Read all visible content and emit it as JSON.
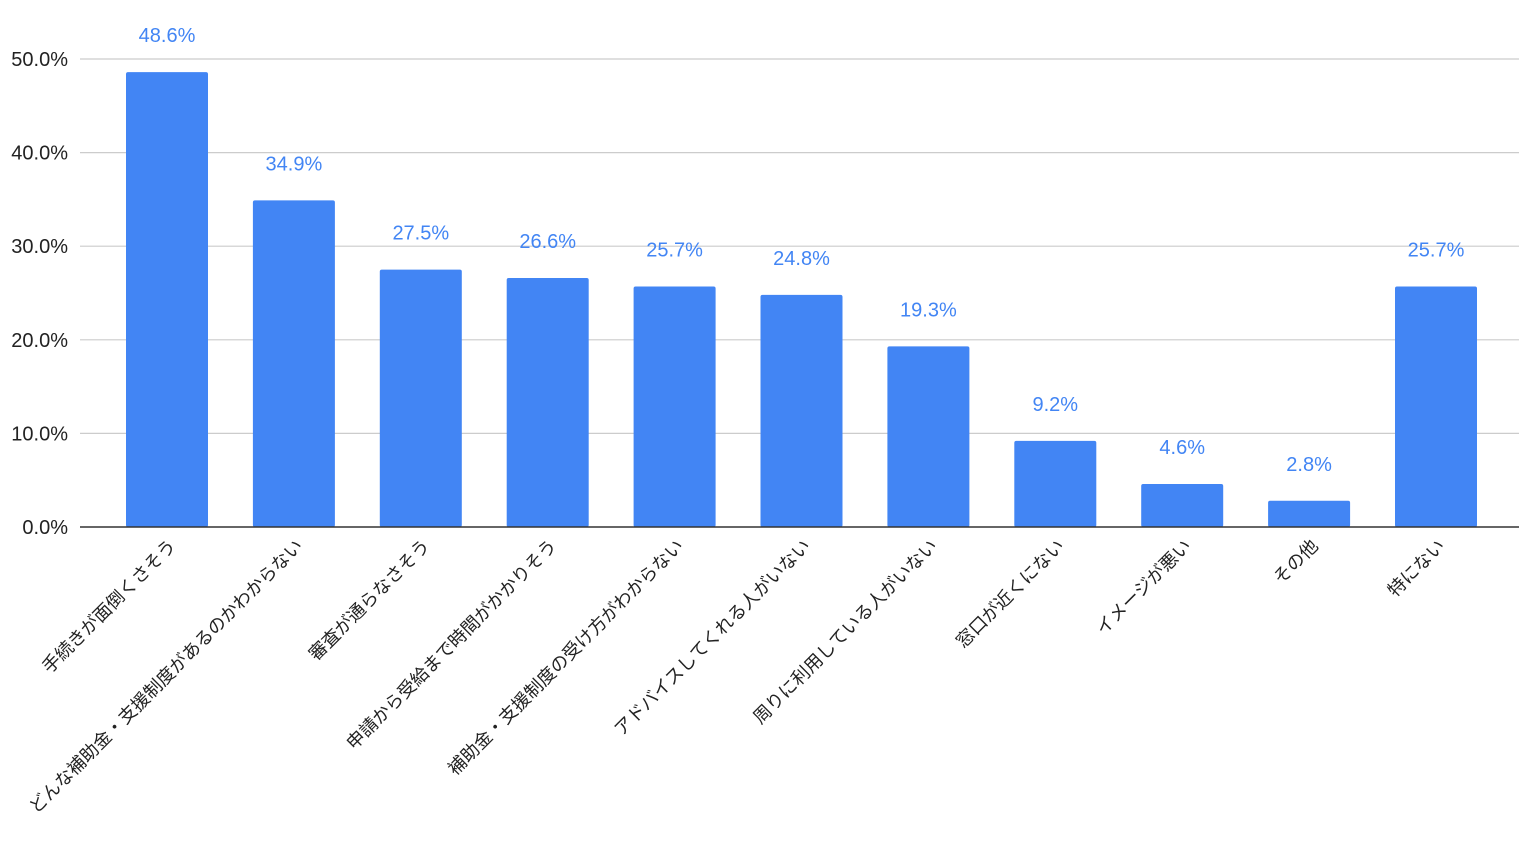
{
  "chart_data": {
    "type": "bar",
    "title": "",
    "xlabel": "",
    "ylabel": "",
    "ylim": [
      0,
      50
    ],
    "yticks": [
      0,
      10,
      20,
      30,
      40,
      50
    ],
    "ytick_labels": [
      "0.0%",
      "10.0%",
      "20.0%",
      "30.0%",
      "40.0%",
      "50.0%"
    ],
    "grid": true,
    "legend": "none",
    "bar_color": "#4285f4",
    "label_color": "#4285f4",
    "categories": [
      "手続きが面倒くさそう",
      "どんな補助金・支援制度があるのかわからない",
      "審査が通らなさそう",
      "申請から受給まで時間がかかりそう",
      "補助金・支援制度の受け方がわからない",
      "アドバイスしてくれる人がいない",
      "周りに利用している人がいない",
      "窓口が近くにない",
      "イメージが悪い",
      "その他",
      "特にない"
    ],
    "values": [
      48.6,
      34.9,
      27.5,
      26.6,
      25.7,
      24.8,
      19.3,
      9.2,
      4.6,
      2.8,
      25.7
    ],
    "value_labels": [
      "48.6%",
      "34.9%",
      "27.5%",
      "26.6%",
      "25.7%",
      "24.8%",
      "19.3%",
      "9.2%",
      "4.6%",
      "2.8%",
      "25.7%"
    ]
  }
}
